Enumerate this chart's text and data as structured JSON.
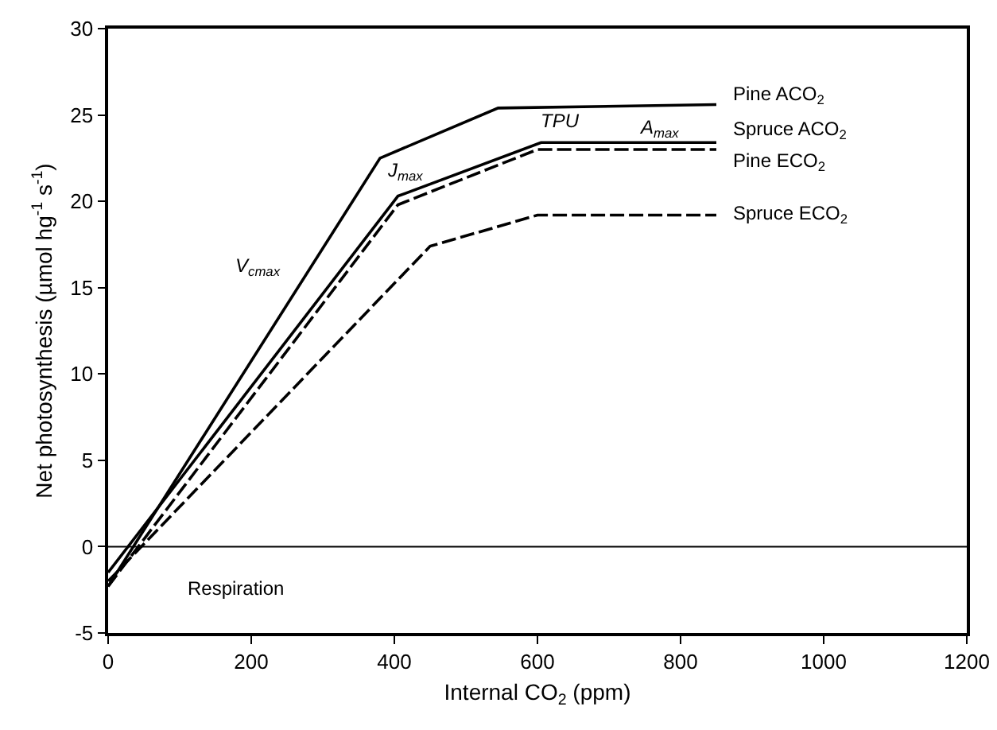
{
  "chart_data": {
    "type": "line",
    "xlabel": "Internal CO$_{2}$ (ppm)",
    "ylabel": "Net photosynthesis (µmol hg$^{-1}$ s$^{-1}$)",
    "series": [
      {
        "name": "Pine ACO$_{2}$",
        "color": "#000000",
        "line_style": "solid",
        "x": [
          0,
          380,
          545,
          850
        ],
        "values": [
          -2.3,
          22.5,
          25.4,
          25.6
        ]
      },
      {
        "name": "Spruce ACO$_{2}$",
        "color": "#000000",
        "line_style": "solid",
        "x": [
          0,
          405,
          605,
          850
        ],
        "values": [
          -1.5,
          20.3,
          23.4,
          23.4
        ]
      },
      {
        "name": "Pine ECO$_{2}$",
        "color": "#000000",
        "line_style": "dashed",
        "x": [
          0,
          405,
          600,
          850
        ],
        "values": [
          -2.3,
          19.8,
          23.0,
          23.0
        ]
      },
      {
        "name": "Spruce ECO$_{2}$",
        "color": "#000000",
        "line_style": "dashed",
        "x": [
          0,
          450,
          600,
          850
        ],
        "values": [
          -2.0,
          17.4,
          19.2,
          19.2
        ]
      }
    ],
    "annotations": [
      "V$_{cmax}$",
      "J$_{max}$",
      "TPU",
      "A$_{max}$",
      "Respiration"
    ],
    "ref_lines": [
      {
        "axis": "y",
        "value": 0,
        "color": "#000000"
      }
    ],
    "xlim": [
      0,
      1200
    ],
    "xticks": [
      0,
      200,
      400,
      600,
      800,
      1000,
      1200
    ],
    "ylim": [
      -5,
      30
    ],
    "yticks": [
      -5,
      0,
      5,
      10,
      15,
      20,
      25,
      30
    ],
    "legend": false,
    "marker": "none"
  }
}
